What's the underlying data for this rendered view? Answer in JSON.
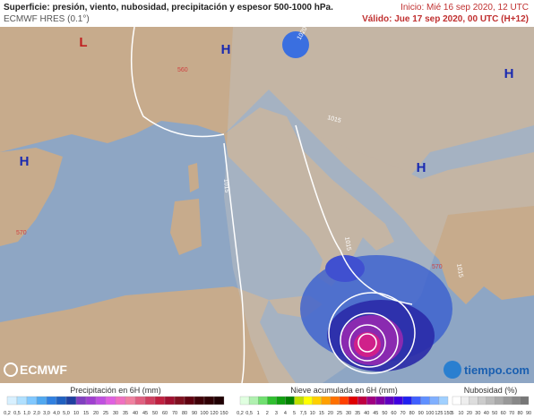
{
  "header": {
    "title": "Superficie: presión, viento, nubosidad, precipitación y espesor 500-1000 hPa.",
    "model": "ECMWF HRES (0.1°)",
    "init": "Inicio: Mié 16 sep 2020, 12 UTC",
    "valid": "Válido: Jue 17 sep 2020, 00 UTC (H+12)"
  },
  "map": {
    "pressure_centers": [
      "L",
      "H",
      "H",
      "H",
      "H"
    ],
    "isobar_labels": [
      "1020",
      "1015",
      "1015",
      "1015",
      "1015"
    ],
    "thickness_labels": [
      "570",
      "570",
      "560"
    ]
  },
  "logos": {
    "left": "ECMWF",
    "right": "tiempo.com"
  },
  "legends": [
    {
      "title": "Precipitación en 6H (mm)",
      "ticks": [
        "0,2",
        "0,5",
        "1,0",
        "2,0",
        "3,0",
        "4,0",
        "5,0",
        "10",
        "15",
        "20",
        "25",
        "30",
        "35",
        "40",
        "45",
        "50",
        "60",
        "70",
        "80",
        "90",
        "100",
        "120",
        "150"
      ]
    },
    {
      "title": "Nieve acumulada en 6H (mm)",
      "ticks": [
        "0,2",
        "0,5",
        "1",
        "2",
        "3",
        "4",
        "5",
        "7,5",
        "10",
        "15",
        "20",
        "25",
        "30",
        "35",
        "40",
        "45",
        "50",
        "60",
        "70",
        "80",
        "90",
        "100",
        "125",
        "150"
      ]
    },
    {
      "title": "Nubosidad (%)",
      "ticks": [
        "5",
        "10",
        "20",
        "30",
        "40",
        "50",
        "60",
        "70",
        "80",
        "90"
      ]
    }
  ]
}
